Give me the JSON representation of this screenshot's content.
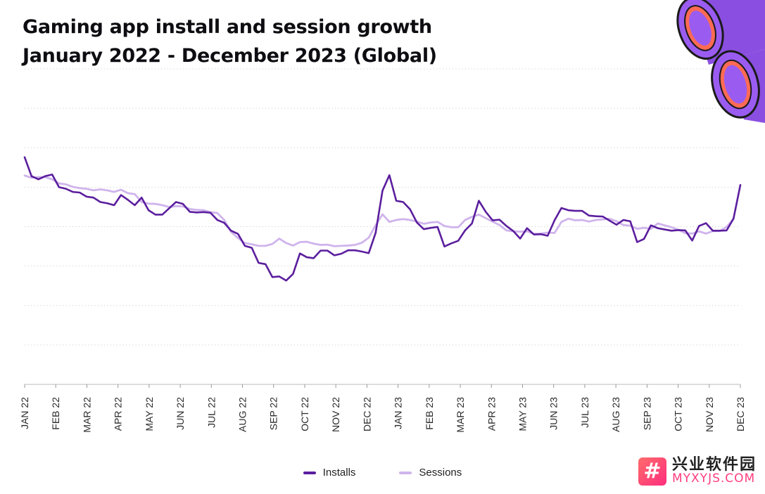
{
  "header": {
    "title_line1": "Gaming app install and session growth",
    "title_line2": "January 2022 - December 2023 (Global)"
  },
  "watermark": {
    "logo_glyph": "#",
    "cn_text": "兴业软件园",
    "en_text": "MYXYJS.COM"
  },
  "colors": {
    "installs": "#5b1e9e",
    "sessions": "#cfb4ec",
    "grid": "#d9d9d9",
    "axis": "#555555"
  },
  "chart_data": {
    "type": "line",
    "title": "Gaming app install and session growth",
    "subtitle": "January 2022 - December 2023 (Global)",
    "xlabel": "",
    "ylabel": "",
    "grid": true,
    "legend_position": "bottom",
    "ylim": [
      0,
      100
    ],
    "x_tick_labels": [
      "JAN 22",
      "FEB 22",
      "MAR 22",
      "APR 22",
      "MAY 22",
      "JUN 22",
      "JUL 22",
      "AUG 22",
      "SEP 22",
      "OCT 22",
      "NOV 22",
      "DEC 22",
      "JAN 23",
      "FEB 23",
      "MAR 23",
      "APR 23",
      "MAY 23",
      "JUN 23",
      "JUL 23",
      "AUG 23",
      "SEP 23",
      "OCT 23",
      "NOV 23",
      "DEC 23"
    ],
    "series": [
      {
        "name": "Installs",
        "values": [
          72,
          66,
          65,
          66,
          66.5,
          62.5,
          62,
          61,
          60.8,
          59.5,
          59.2,
          57.8,
          57.4,
          56.8,
          60,
          58.5,
          56.8,
          59.2,
          55.2,
          53.8,
          53.8,
          55.8,
          57.8,
          57.2,
          54.7,
          54.5,
          54.6,
          54.4,
          52.1,
          51.2,
          48.7,
          47.7,
          43.9,
          43.3,
          38.5,
          38.1,
          34,
          34.2,
          32.9,
          35,
          41.5,
          40.3,
          40,
          42.4,
          42.4,
          40.9,
          41.4,
          42.5,
          42.5,
          42.1,
          41.6,
          48,
          61.4,
          66.3,
          58.2,
          57.8,
          55.5,
          51.3,
          49.2,
          49.6,
          49.9,
          43.7,
          44.7,
          45.5,
          48.8,
          51,
          58.2,
          54.7,
          52,
          52.2,
          50.2,
          48.6,
          46.2,
          49.5,
          47.5,
          47.6,
          47.1,
          52,
          55.9,
          55.2,
          55,
          55,
          53.5,
          53.3,
          53.2,
          51.9,
          50.6,
          52.1,
          51.7,
          45.1,
          46.1,
          50.4,
          49.5,
          49.1,
          48.7,
          48.9,
          48.8,
          45.6,
          50.2,
          51.1,
          48.7,
          48.7,
          48.8,
          52.5,
          63.2
        ],
        "color": "#5b1e9e"
      },
      {
        "name": "Sessions",
        "values": [
          66.2,
          65.5,
          65.7,
          65.7,
          65,
          63.7,
          63.4,
          62.6,
          62.2,
          62,
          61.5,
          61.8,
          61.5,
          61,
          61.7,
          60.6,
          60.3,
          57.8,
          57.3,
          57.2,
          56.8,
          56.2,
          56.5,
          56.4,
          55.6,
          55.3,
          55.2,
          54.6,
          54.3,
          52.1,
          48.3,
          46.4,
          44.8,
          44.4,
          43.9,
          43.9,
          44.5,
          46.2,
          44.8,
          44,
          45.1,
          45.2,
          44.6,
          44.2,
          44.3,
          43.8,
          43.9,
          44,
          44.2,
          44.9,
          46.5,
          50.4,
          53.9,
          51.5,
          52.1,
          52.4,
          52.1,
          51.6,
          50.9,
          51.3,
          51.5,
          50.2,
          49.8,
          49.8,
          52.1,
          53.1,
          53.8,
          52.7,
          51.6,
          50.5,
          48.8,
          48.5,
          48.4,
          48.5,
          47.7,
          47.8,
          48.1,
          48,
          51.5,
          52.5,
          52,
          52.1,
          51.6,
          52.1,
          52.3,
          52.5,
          51.7,
          50.5,
          50.3,
          49.3,
          49.6,
          49.3,
          51,
          50.4,
          49.8,
          49,
          47.9,
          47.8,
          48.5,
          47.8,
          48.6,
          48.6,
          49.9,
          52.5
        ],
        "color": "#cfb4ec"
      }
    ]
  }
}
